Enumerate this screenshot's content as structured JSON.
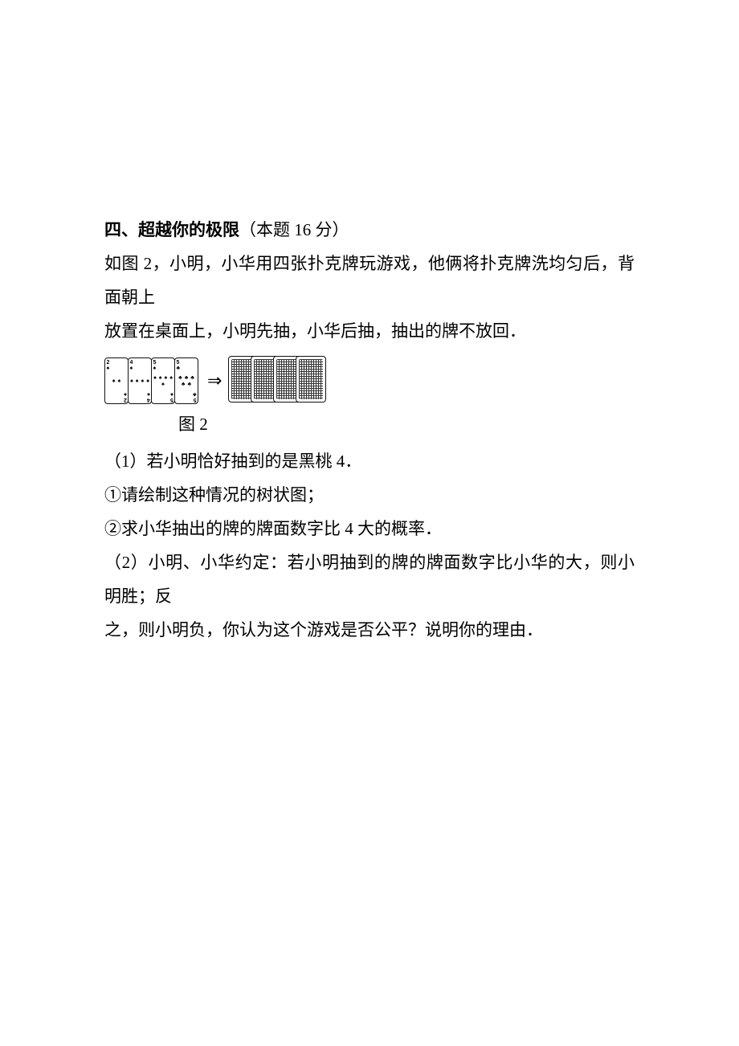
{
  "section": {
    "heading_bold": "四、超越你的极限",
    "heading_score": "（本题 16 分）"
  },
  "intro": {
    "line1": "如图 2，小明，小华用四张扑克牌玩游戏，他俩将扑克牌洗均匀后，背面朝上",
    "line2": "放置在桌面上，小明先抽，小华后抽，抽出的牌不放回．"
  },
  "figure": {
    "caption": "图 2",
    "cards": [
      {
        "rank": "2",
        "suit": "♠",
        "pips": [
          "♠",
          "♠"
        ]
      },
      {
        "rank": "4",
        "suit": "♠",
        "pips": [
          "♠",
          "♠",
          "♠",
          "♠"
        ]
      },
      {
        "rank": "5",
        "suit": "♠",
        "pips": [
          "♠",
          "♠",
          "♠",
          "♠",
          "♠"
        ]
      },
      {
        "rank": "5",
        "suit": "♣",
        "pips": [
          "♣",
          "♣",
          "♣",
          "♣",
          "♣"
        ]
      }
    ],
    "arrow": "⇒",
    "backs_count": 4,
    "back_offsets": [
      0,
      28,
      56,
      84
    ],
    "grid_color": "#333333",
    "border_color": "#111111"
  },
  "questions": {
    "q1_intro": "（1）若小明恰好抽到的是黑桃 4．",
    "q1_a": "①请绘制这种情况的树状图；",
    "q1_b": "②求小华抽出的牌的牌面数字比 4 大的概率．",
    "q2_line1": "（2）小明、小华约定：若小明抽到的牌的牌面数字比小华的大，则小明胜；反",
    "q2_line2": "之，则小明负，你认为这个游戏是否公平？说明你的理由．"
  }
}
